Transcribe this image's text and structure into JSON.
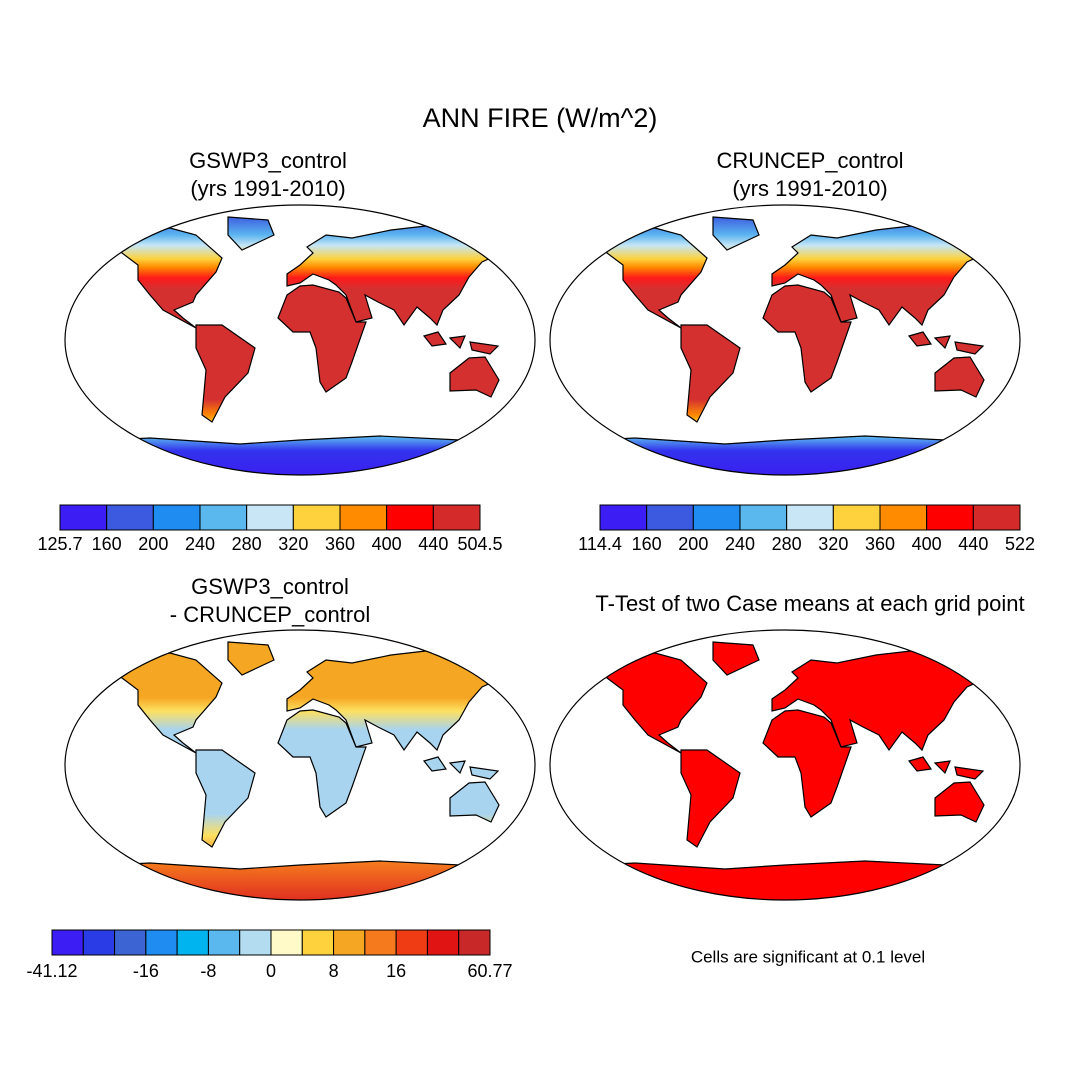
{
  "title": "ANN FIRE (W/m^2)",
  "panels": [
    {
      "title": [
        "GSWP3_control",
        "(yrs 1991-2010)"
      ],
      "colorbar": {
        "colors": [
          "#3c1ef5",
          "#3c5ae0",
          "#1e8cf0",
          "#5ab8ee",
          "#c8e6f5",
          "#fdd23c",
          "#ff8c00",
          "#ff0000",
          "#d42a2a"
        ],
        "labels": [
          125.7,
          160,
          200,
          240,
          280,
          320,
          360,
          400,
          440,
          504.5
        ]
      }
    },
    {
      "title": [
        "CRUNCEP_control",
        "(yrs 1991-2010)"
      ],
      "colorbar": {
        "colors": [
          "#3c1ef5",
          "#3c5ae0",
          "#1e8cf0",
          "#5ab8ee",
          "#c8e6f5",
          "#fdd23c",
          "#ff8c00",
          "#ff0000",
          "#d42a2a"
        ],
        "labels": [
          114.4,
          160,
          200,
          240,
          280,
          320,
          360,
          400,
          440,
          522
        ]
      }
    },
    {
      "title": [
        "GSWP3_control",
        "- CRUNCEP_control"
      ],
      "colorbar": {
        "colors": [
          "#3c1ef5",
          "#2a3ce6",
          "#3c64d2",
          "#1e8cf0",
          "#00b4f0",
          "#5ab8ee",
          "#b4dcf0",
          "#fffac8",
          "#fdd23c",
          "#f5a623",
          "#f57a1e",
          "#f03c14",
          "#e11414",
          "#c82828"
        ],
        "labels": [
          -41.12,
          -16,
          -8,
          0,
          8,
          16,
          60.77
        ]
      }
    },
    {
      "title": [
        "T-Test of two Case means at each grid point"
      ],
      "note": "Cells are significant at 0.1 level"
    }
  ]
}
